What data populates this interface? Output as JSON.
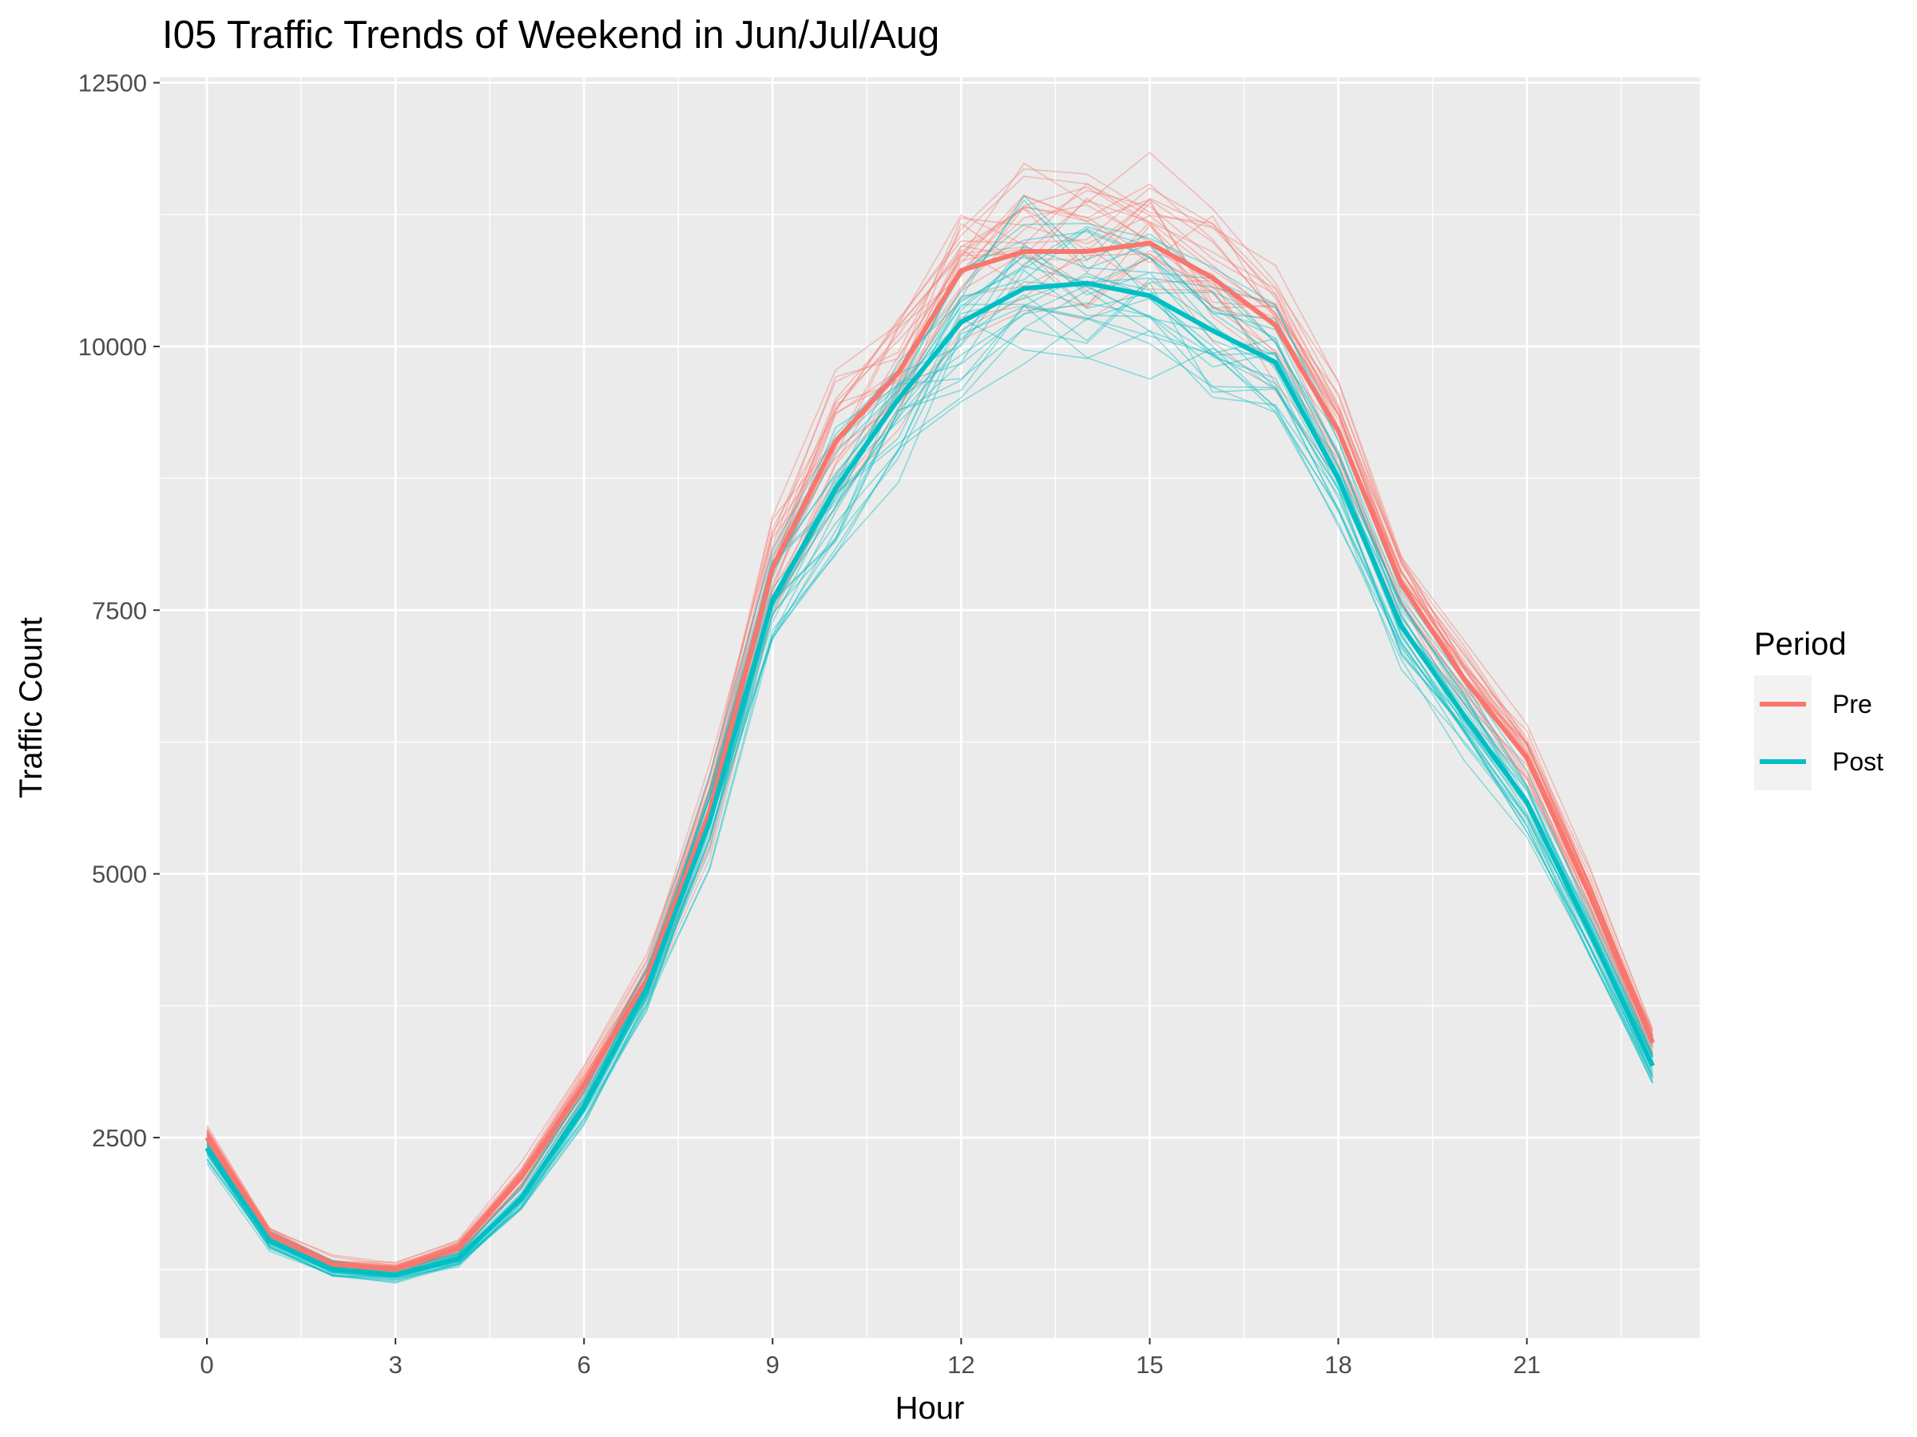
{
  "chart_data": {
    "type": "line",
    "title": "I05 Traffic Trends of Weekend in Jun/Jul/Aug",
    "xlabel": "Hour",
    "ylabel": "Traffic Count",
    "xlim": [
      -0.75,
      23.75
    ],
    "ylim": [
      600,
      12550
    ],
    "x_ticks": [
      0,
      3,
      6,
      9,
      12,
      15,
      18,
      21
    ],
    "y_ticks": [
      2500,
      5000,
      7500,
      10000,
      12500
    ],
    "grid": true,
    "legend": {
      "title": "Period",
      "position": "right",
      "entries": [
        {
          "label": "Pre",
          "color": "#F8766D"
        },
        {
          "label": "Post",
          "color": "#00BFC4"
        }
      ]
    },
    "x": [
      0,
      1,
      2,
      3,
      4,
      5,
      6,
      7,
      8,
      9,
      10,
      11,
      12,
      13,
      14,
      15,
      16,
      17,
      18,
      19,
      20,
      21,
      22,
      23
    ],
    "series": [
      {
        "name": "Pre",
        "color": "#F8766D",
        "values": [
          2500,
          1580,
          1300,
          1250,
          1450,
          2120,
          3000,
          4000,
          5600,
          7900,
          9100,
          9750,
          10720,
          10900,
          10900,
          10980,
          10650,
          10200,
          9200,
          7750,
          6850,
          6100,
          4800,
          3400
        ]
      },
      {
        "name": "Post",
        "color": "#00BFC4",
        "values": [
          2400,
          1520,
          1250,
          1200,
          1350,
          1920,
          2800,
          3920,
          5500,
          7600,
          8650,
          9500,
          10230,
          10550,
          10600,
          10480,
          10150,
          9850,
          8750,
          7350,
          6500,
          5680,
          4450,
          3180
        ]
      }
    ]
  }
}
